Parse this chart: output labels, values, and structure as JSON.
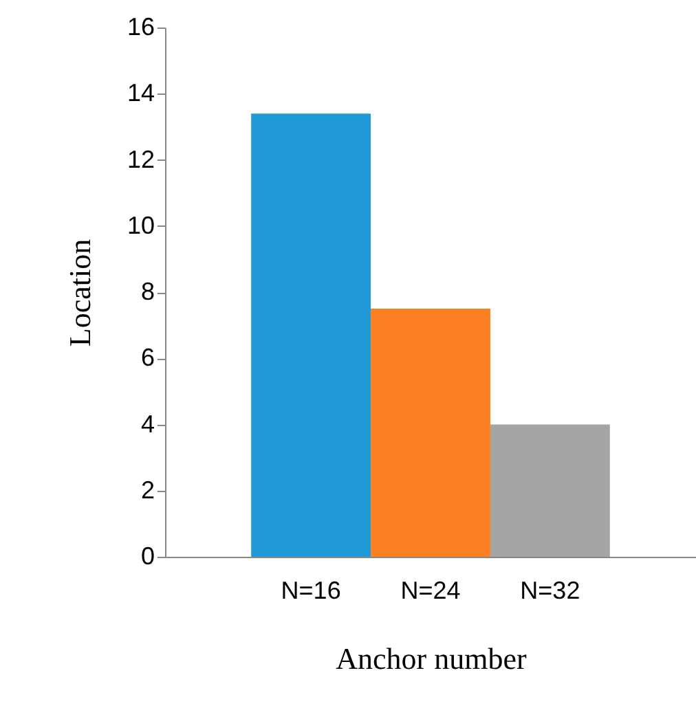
{
  "chart_data": {
    "type": "bar",
    "xlabel": "Anchor number",
    "ylabel": "Location",
    "categories": [
      "N=16",
      "N=24",
      "N=32"
    ],
    "values": [
      13.4,
      7.5,
      4.0
    ],
    "colors": [
      "#1f9ad6",
      "#fd7f23",
      "#a5a5a5"
    ],
    "ylim": [
      0,
      16
    ],
    "yticks": [
      0,
      2,
      4,
      6,
      8,
      10,
      12,
      14,
      16
    ],
    "grid": false,
    "legend": false
  }
}
